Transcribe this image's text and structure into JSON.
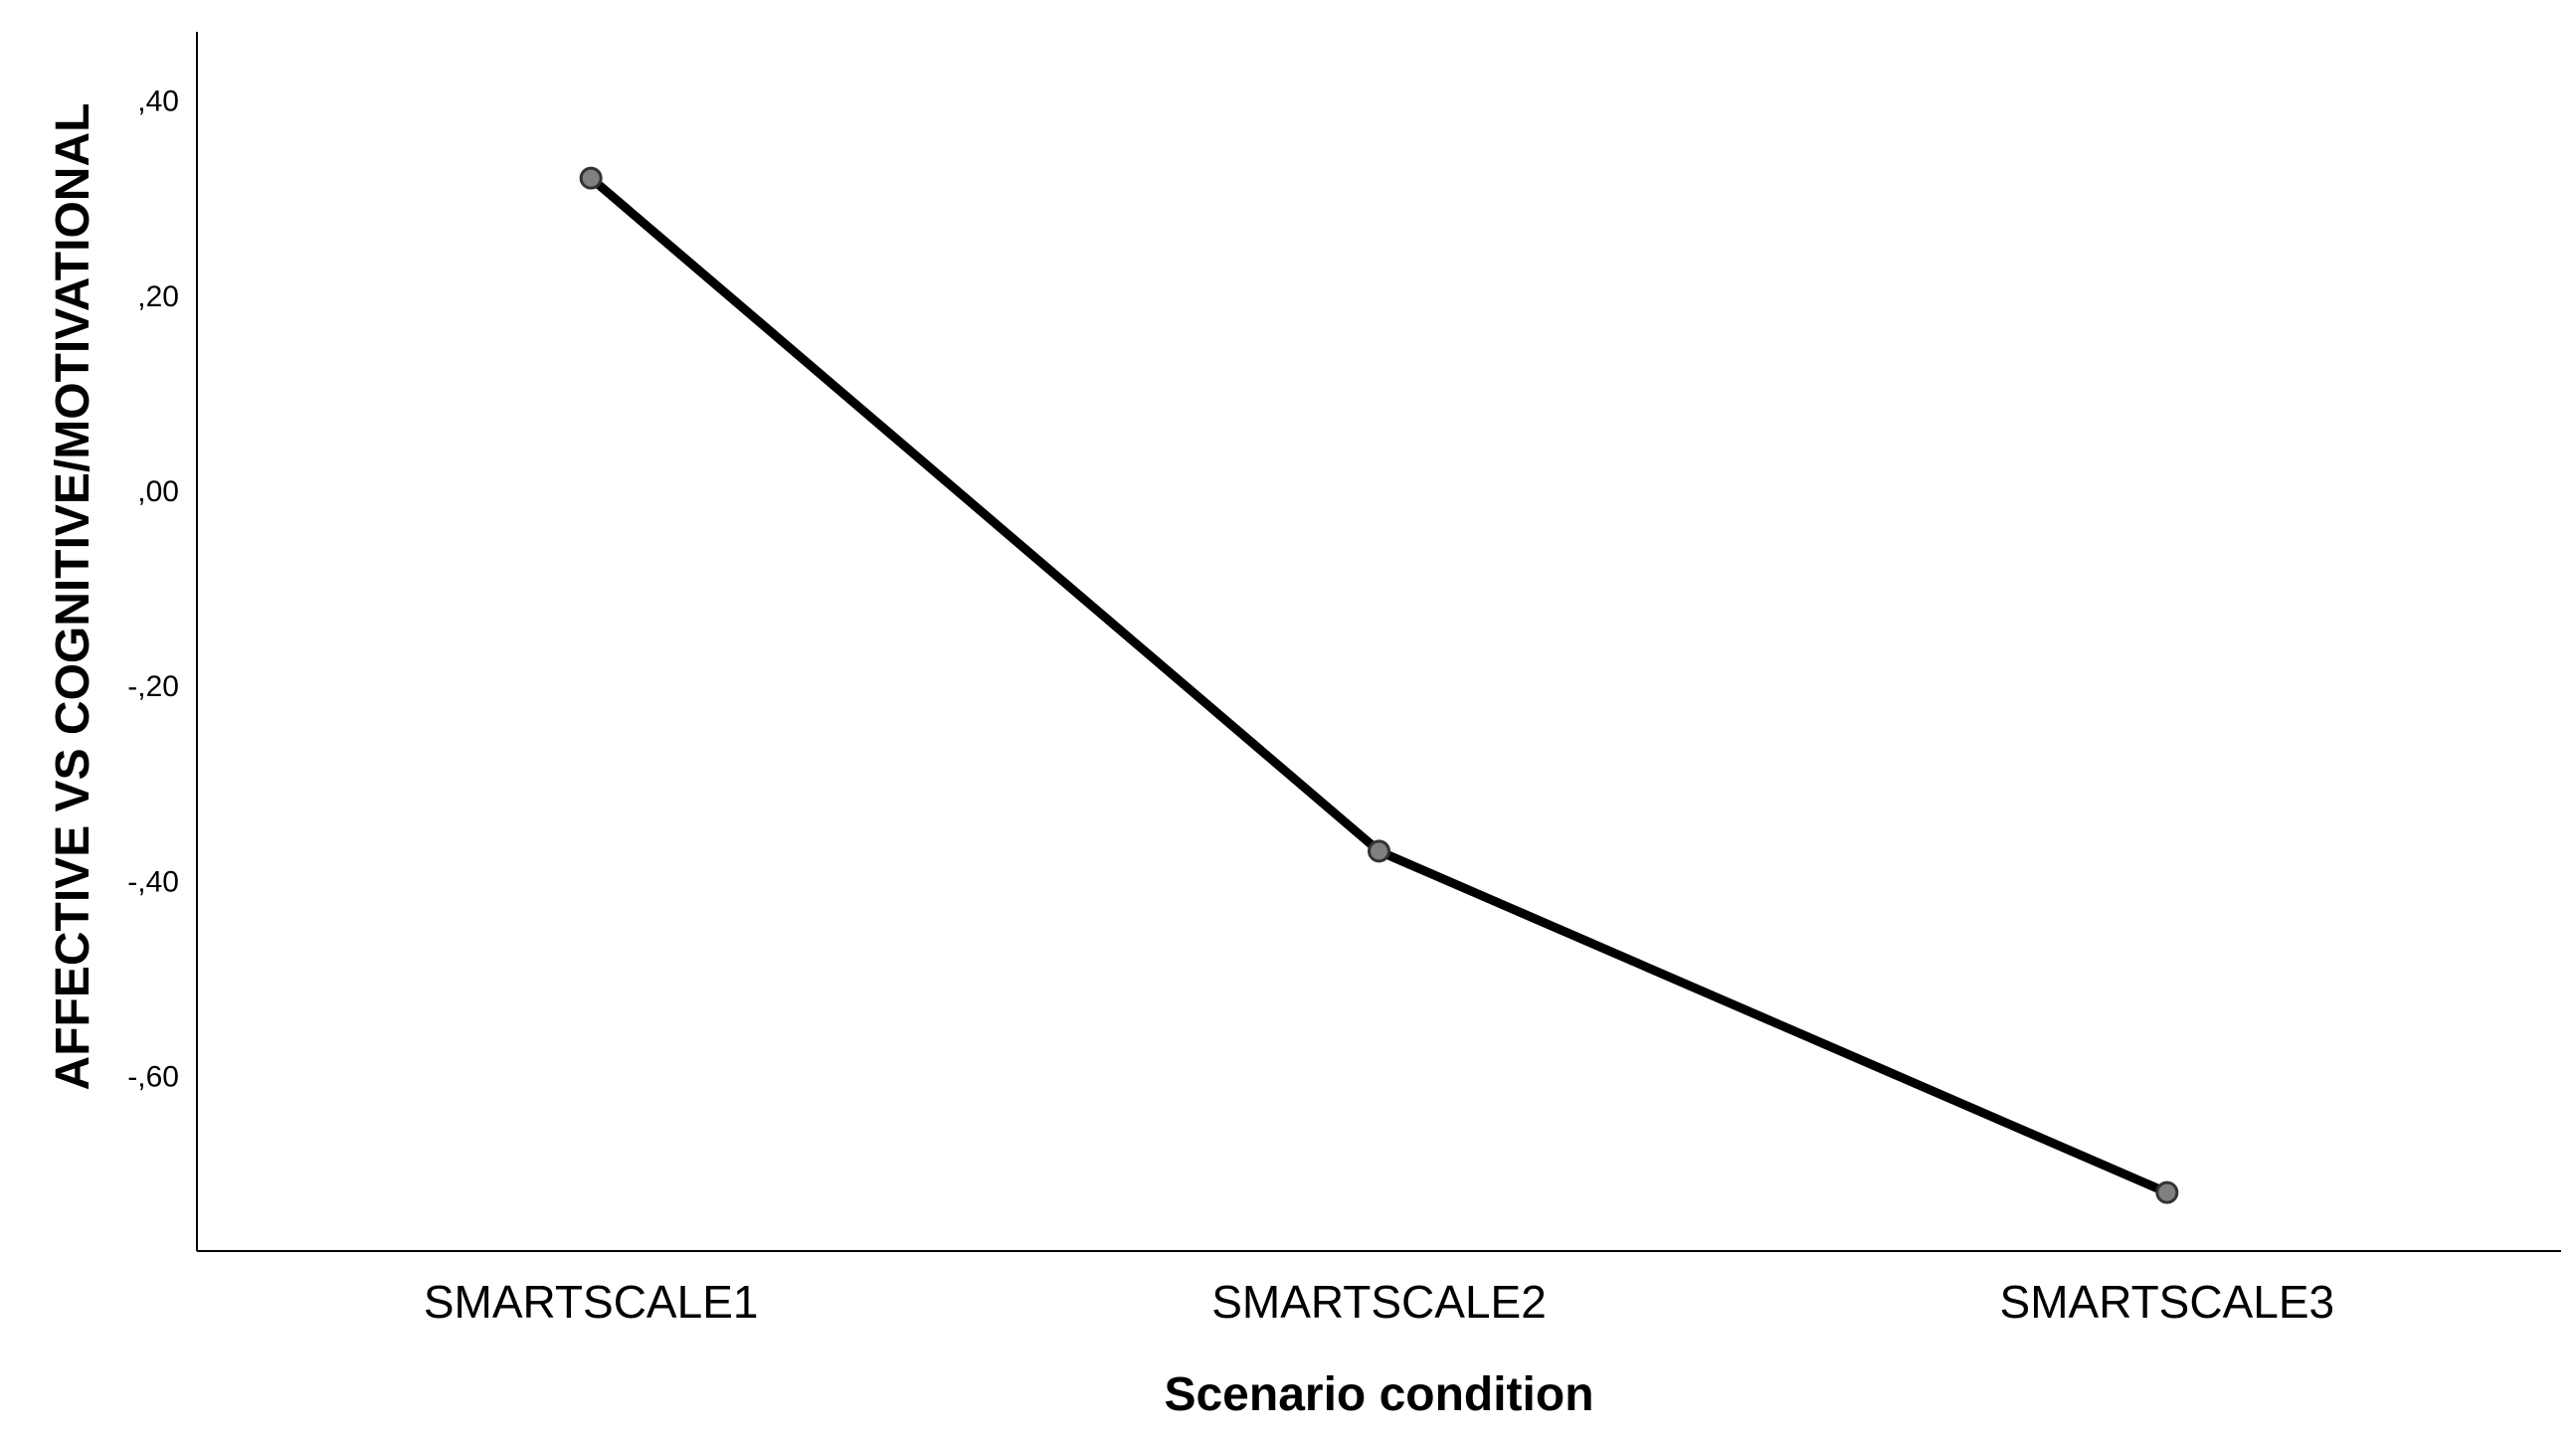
{
  "chart_data": {
    "type": "line",
    "categories": [
      "SMARTSCALE1",
      "SMARTSCALE2",
      "SMARTSCALE3"
    ],
    "series": [
      {
        "values": [
          0.32,
          -0.37,
          -0.72
        ]
      }
    ],
    "y_ticks": [
      {
        "value": 0.4,
        "label": ",40"
      },
      {
        "value": 0.2,
        "label": ",20"
      },
      {
        "value": 0.0,
        "label": ",00"
      },
      {
        "value": -0.2,
        "label": "-,20"
      },
      {
        "value": -0.4,
        "label": "-,40"
      },
      {
        "value": -0.6,
        "label": "-,60"
      }
    ],
    "xlabel": "Scenario condition",
    "ylabel": "AFFECTIVE VS COGNITIVE/MOTIVATIONAL",
    "ylim": [
      -0.78,
      0.47
    ],
    "grid": false,
    "line_color": "#000000",
    "marker_color": "#808080"
  }
}
